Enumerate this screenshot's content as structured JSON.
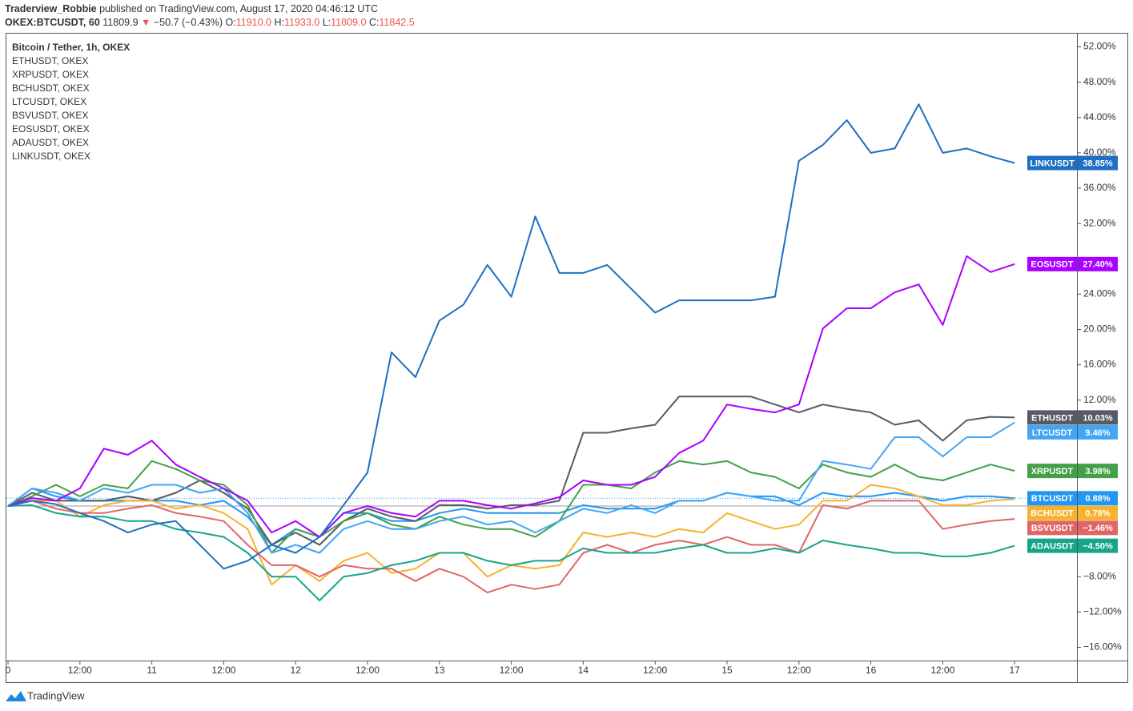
{
  "header": {
    "author": "Traderview_Robbie",
    "published": "published on TradingView.com, August 17, 2020 04:46:12 UTC",
    "symbol": "OKEX:BTCUSDT, 60",
    "last": "11809.9",
    "change": "−50.7 (−0.43%)",
    "open_label": "O:",
    "open": "11910.0",
    "high_label": "H:",
    "high": "11933.0",
    "low_label": "L:",
    "low": "11809.0",
    "close_label": "C:",
    "close": "11842.5"
  },
  "footer": {
    "brand": "TradingView"
  },
  "chart_data": {
    "type": "line",
    "main_legend": "Bitcoin / Tether, 1h, OKEX",
    "x": [
      0,
      4,
      8,
      12,
      16,
      20,
      24,
      28,
      32,
      36,
      40,
      44,
      48,
      52,
      56,
      60,
      64,
      68,
      72,
      76,
      80,
      84,
      88,
      92,
      96,
      100,
      104,
      108,
      112,
      116,
      120,
      124,
      128,
      132,
      136,
      140,
      144,
      148,
      152,
      156,
      160,
      164,
      168
    ],
    "xlim": [
      -0.27,
      178.4
    ],
    "xticks": [
      {
        "value": 0,
        "label": "0"
      },
      {
        "value": 12,
        "label": "12:00"
      },
      {
        "value": 24,
        "label": "11"
      },
      {
        "value": 36,
        "label": "12:00"
      },
      {
        "value": 48,
        "label": "12"
      },
      {
        "value": 60,
        "label": "12:00"
      },
      {
        "value": 72,
        "label": "13"
      },
      {
        "value": 84,
        "label": "12:00"
      },
      {
        "value": 96,
        "label": "14"
      },
      {
        "value": 108,
        "label": "12:00"
      },
      {
        "value": 120,
        "label": "15"
      },
      {
        "value": 132,
        "label": "12:00"
      },
      {
        "value": 144,
        "label": "16"
      },
      {
        "value": 156,
        "label": "12:00"
      },
      {
        "value": 168,
        "label": "17"
      }
    ],
    "ylim": [
      -17.5,
      53.5
    ],
    "yticks": [
      {
        "value": 52,
        "label": "52.00%"
      },
      {
        "value": 48,
        "label": "48.00%"
      },
      {
        "value": 44,
        "label": "44.00%"
      },
      {
        "value": 40,
        "label": "40.00%"
      },
      {
        "value": 36,
        "label": "36.00%"
      },
      {
        "value": 32,
        "label": "32.00%"
      },
      {
        "value": 24,
        "label": "24.00%"
      },
      {
        "value": 20,
        "label": "20.00%"
      },
      {
        "value": 16,
        "label": "16.00%"
      },
      {
        "value": 12,
        "label": "12.00%"
      },
      {
        "value": -8,
        "label": "−8.00%"
      },
      {
        "value": -12,
        "label": "−12.00%"
      },
      {
        "value": -16,
        "label": "−16.00%"
      }
    ],
    "grid": false,
    "series": [
      {
        "name": "BTCUSDT",
        "legend": null,
        "color": "#2196f3",
        "main": true,
        "end_label": {
          "value": 0.88,
          "label": "0.88%"
        },
        "values": [
          0,
          2.0,
          1.1,
          0.6,
          0.6,
          0.6,
          0.6,
          0.6,
          0.1,
          0.6,
          -1.2,
          -4.4,
          -2.6,
          -3.5,
          -0.8,
          -0.8,
          -1.7,
          -1.7,
          -0.8,
          -0.3,
          -0.8,
          -0.8,
          -0.8,
          -0.8,
          0.1,
          -0.3,
          -0.3,
          -0.3,
          0.6,
          0.6,
          1.5,
          1.1,
          1.1,
          0.1,
          1.5,
          1.1,
          1.1,
          1.5,
          1.1,
          0.6,
          1.1,
          1.1,
          0.88
        ]
      },
      {
        "name": "ETHUSDT",
        "legend": "ETHUSDT, OKEX",
        "color": "#555a63",
        "end_label": {
          "value": 10.03,
          "label": "10.03%"
        },
        "values": [
          0,
          1.5,
          0.6,
          0.6,
          0.6,
          1.1,
          0.6,
          1.5,
          2.9,
          1.5,
          -0.3,
          -4.4,
          -3.0,
          -4.4,
          -1.7,
          -0.3,
          -1.2,
          -1.7,
          0.1,
          0.1,
          -0.3,
          0.1,
          0.1,
          0.6,
          8.3,
          8.3,
          8.8,
          9.2,
          12.4,
          12.4,
          12.4,
          12.4,
          11.5,
          10.6,
          11.5,
          11.0,
          10.6,
          9.2,
          9.7,
          7.4,
          9.7,
          10.1,
          10.03
        ]
      },
      {
        "name": "XRPUSDT",
        "legend": "XRPUSDT, OKEX",
        "color": "#43a047",
        "end_label": {
          "value": 3.98,
          "label": "3.98%"
        },
        "values": [
          0,
          1.1,
          2.4,
          1.1,
          2.4,
          2.0,
          5.1,
          4.2,
          2.9,
          2.4,
          0.1,
          -5.3,
          -2.6,
          -3.5,
          -1.7,
          -0.8,
          -2.1,
          -2.6,
          -1.2,
          -2.1,
          -2.6,
          -2.6,
          -3.5,
          -1.7,
          2.4,
          2.4,
          2.0,
          3.8,
          5.1,
          4.7,
          5.1,
          3.8,
          3.3,
          2.0,
          4.7,
          3.8,
          3.3,
          4.7,
          3.3,
          2.9,
          3.8,
          4.7,
          3.98
        ]
      },
      {
        "name": "BCHUSDT",
        "legend": "BCHUSDT, OKEX",
        "color": "#f7b22d",
        "end_label": {
          "value": 0.78,
          "label": "0.78%"
        },
        "values": [
          0,
          0.6,
          0.6,
          -1.2,
          0.1,
          0.6,
          0.6,
          -0.3,
          0.1,
          -0.8,
          -2.6,
          -8.9,
          -6.7,
          -8.5,
          -6.2,
          -5.3,
          -7.6,
          -7.1,
          -5.3,
          -5.3,
          -8.0,
          -6.7,
          -7.1,
          -6.7,
          -3.0,
          -3.5,
          -3.0,
          -3.5,
          -2.6,
          -3.0,
          -0.8,
          -1.7,
          -2.6,
          -2.1,
          0.6,
          0.6,
          2.4,
          2.0,
          1.1,
          0.1,
          0.1,
          0.6,
          0.78
        ]
      },
      {
        "name": "LTCUSDT",
        "legend": "LTCUSDT, OKEX",
        "color": "#42a5f5",
        "end_label": {
          "value": 9.46,
          "label": "9.46%"
        },
        "values": [
          0,
          2.0,
          1.5,
          0.6,
          2.0,
          1.5,
          2.4,
          2.4,
          1.5,
          2.0,
          -0.8,
          -5.3,
          -4.4,
          -5.3,
          -2.6,
          -1.7,
          -2.6,
          -2.6,
          -1.7,
          -1.2,
          -2.1,
          -1.7,
          -3.0,
          -1.7,
          -0.3,
          -0.8,
          0.1,
          -0.8,
          0.6,
          0.6,
          1.5,
          1.1,
          0.6,
          0.6,
          5.1,
          4.7,
          4.2,
          7.8,
          7.8,
          5.6,
          7.8,
          7.8,
          9.46
        ]
      },
      {
        "name": "BSVUSDT",
        "legend": "BSVUSDT, OKEX",
        "color": "#e06666",
        "end_label": {
          "value": -1.46,
          "label": "−1.46%"
        },
        "values": [
          0,
          0.6,
          -0.3,
          -0.8,
          -0.8,
          -0.3,
          0.1,
          -0.8,
          -1.2,
          -1.7,
          -4.4,
          -6.7,
          -6.7,
          -8.0,
          -6.7,
          -7.1,
          -7.1,
          -8.5,
          -7.1,
          -8.0,
          -9.8,
          -8.9,
          -9.4,
          -8.9,
          -5.3,
          -4.4,
          -5.3,
          -4.4,
          -3.9,
          -4.4,
          -3.5,
          -4.4,
          -4.4,
          -5.3,
          0.1,
          -0.3,
          0.6,
          0.6,
          0.6,
          -2.6,
          -2.1,
          -1.7,
          -1.46
        ]
      },
      {
        "name": "EOSUSDT",
        "legend": "EOSUSDT, OKEX",
        "color": "#aa00ff",
        "end_label": {
          "value": 27.4,
          "label": "27.40%"
        },
        "values": [
          0,
          0.9,
          0.6,
          2.0,
          6.5,
          5.8,
          7.4,
          4.7,
          3.3,
          2.0,
          0.6,
          -3.0,
          -1.7,
          -3.5,
          -0.8,
          0,
          -0.8,
          -1.2,
          0.6,
          0.6,
          0.1,
          -0.3,
          0.3,
          1.0,
          2.9,
          2.4,
          2.4,
          3.3,
          6.0,
          7.4,
          11.5,
          11.0,
          10.6,
          11.5,
          20.1,
          22.4,
          22.4,
          24.2,
          25.1,
          20.5,
          28.3,
          26.5,
          27.4
        ]
      },
      {
        "name": "ADAUSDT",
        "legend": "ADAUSDT, OKEX",
        "color": "#17a589",
        "end_label": {
          "value": -4.5,
          "label": "−4.50%"
        },
        "values": [
          0,
          0.1,
          -0.8,
          -1.2,
          -1.2,
          -1.7,
          -1.7,
          -2.6,
          -3.0,
          -3.5,
          -5.3,
          -8.0,
          -8.0,
          -10.7,
          -8.0,
          -7.6,
          -6.7,
          -6.2,
          -5.3,
          -5.3,
          -6.2,
          -6.7,
          -6.2,
          -6.2,
          -4.8,
          -5.3,
          -5.3,
          -5.3,
          -4.8,
          -4.4,
          -5.3,
          -5.3,
          -4.8,
          -5.3,
          -3.9,
          -4.4,
          -4.8,
          -5.3,
          -5.3,
          -5.7,
          -5.7,
          -5.3,
          -4.5
        ]
      },
      {
        "name": "LINKUSDT",
        "legend": "LINKUSDT, OKEX",
        "color": "#1e6fc4",
        "end_label": {
          "value": 38.85,
          "label": "38.85%"
        },
        "values": [
          0,
          0.6,
          0.2,
          -0.8,
          -1.7,
          -3.0,
          -2.1,
          -1.7,
          -4.4,
          -7.1,
          -6.2,
          -4.4,
          -5.3,
          -3.5,
          0.1,
          3.8,
          17.4,
          14.6,
          21.0,
          22.8,
          27.3,
          23.7,
          32.8,
          26.4,
          26.4,
          27.3,
          24.6,
          21.9,
          23.3,
          23.3,
          23.3,
          23.3,
          23.7,
          39.1,
          40.9,
          43.7,
          40.0,
          40.5,
          45.5,
          40.0,
          40.5,
          39.6,
          38.85
        ]
      }
    ]
  }
}
